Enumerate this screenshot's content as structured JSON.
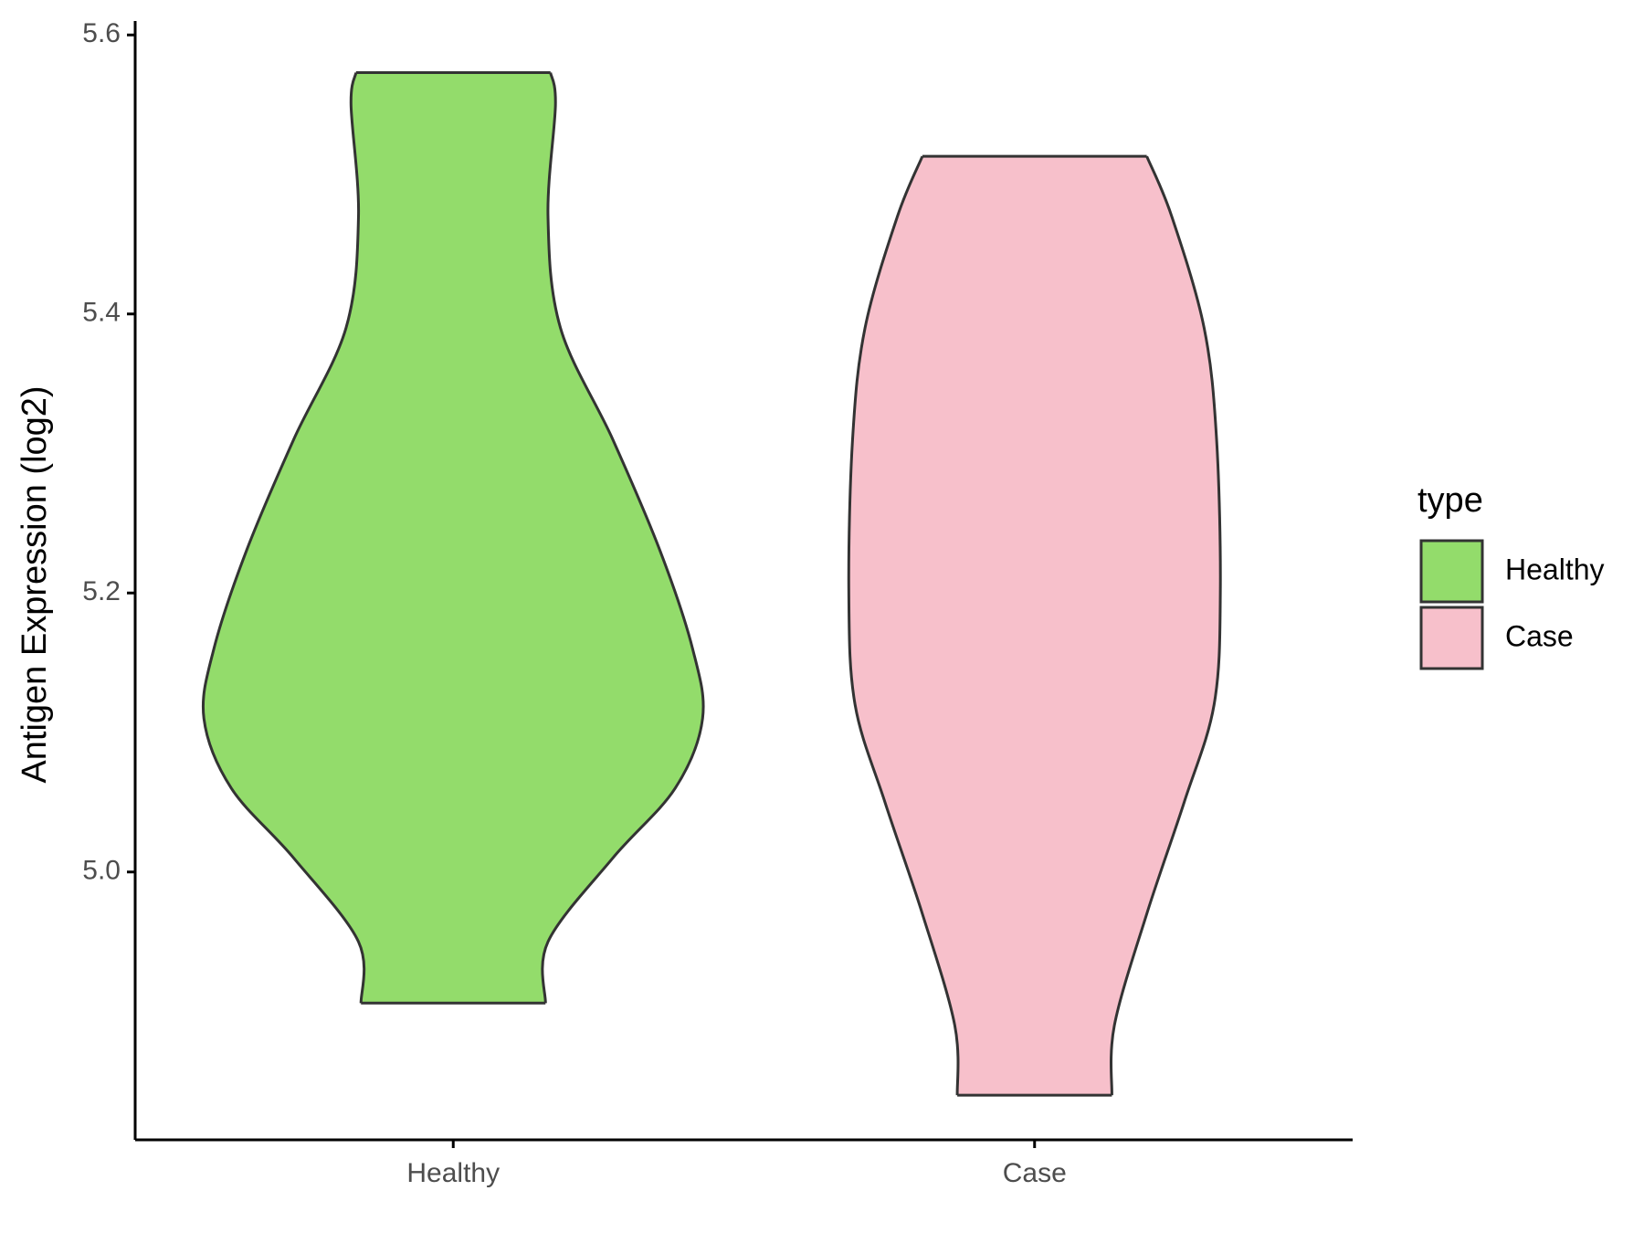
{
  "chart_data": {
    "type": "violin",
    "y_label": "Antigen Expression (log2)",
    "categories": [
      "Healthy",
      "Case"
    ],
    "series": [
      {
        "name": "Healthy",
        "color": "#93dc6b",
        "y": [
          5.573,
          5.55,
          5.47,
          5.39,
          5.31,
          5.23,
          5.16,
          5.11,
          5.06,
          5.01,
          4.95,
          4.906
        ],
        "density": [
          0.39,
          0.41,
          0.38,
          0.43,
          0.64,
          0.83,
          0.96,
          1.0,
          0.89,
          0.64,
          0.38,
          0.37
        ]
      },
      {
        "name": "Case",
        "color": "#f7c0cb",
        "y": [
          5.513,
          5.47,
          5.39,
          5.31,
          5.2,
          5.12,
          5.05,
          4.97,
          4.89,
          4.84
        ],
        "density": [
          0.45,
          0.55,
          0.68,
          0.73,
          0.745,
          0.72,
          0.6,
          0.45,
          0.32,
          0.31
        ]
      }
    ],
    "ylim": [
      4.808,
      5.61
    ],
    "yticks": [
      {
        "value": 5,
        "label": "5.0"
      },
      5.2,
      5.4,
      {
        "value": 5.6,
        "label": "5.6"
      }
    ],
    "legend_title": "type",
    "legend": "right"
  }
}
